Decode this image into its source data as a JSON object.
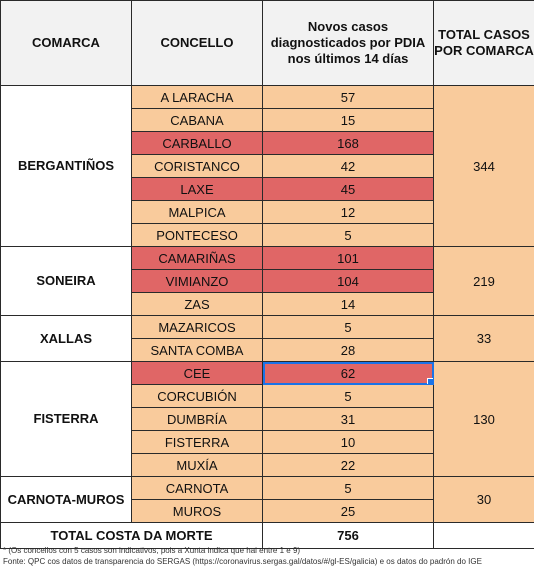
{
  "headers": [
    "COMARCA",
    "CONCELLO",
    "Novos casos diagnosticados por PDIA nos últimos 14 días",
    "TOTAL CASOS POR COMARCA"
  ],
  "groups": [
    {
      "comarca": "BERGANTIÑOS",
      "total": "344",
      "rows": [
        {
          "concello": "A LARACHA",
          "cases": "57",
          "highlight": false
        },
        {
          "concello": "CABANA",
          "cases": "15",
          "highlight": false
        },
        {
          "concello": "CARBALLO",
          "cases": "168",
          "highlight": true
        },
        {
          "concello": "CORISTANCO",
          "cases": "42",
          "highlight": false
        },
        {
          "concello": "LAXE",
          "cases": "45",
          "highlight": true
        },
        {
          "concello": "MALPICA",
          "cases": "12",
          "highlight": false
        },
        {
          "concello": "PONTECESO",
          "cases": "5",
          "highlight": false
        }
      ]
    },
    {
      "comarca": "SONEIRA",
      "total": "219",
      "rows": [
        {
          "concello": "CAMARIÑAS",
          "cases": "101",
          "highlight": true
        },
        {
          "concello": "VIMIANZO",
          "cases": "104",
          "highlight": true
        },
        {
          "concello": "ZAS",
          "cases": "14",
          "highlight": false
        }
      ]
    },
    {
      "comarca": "XALLAS",
      "total": "33",
      "rows": [
        {
          "concello": "MAZARICOS",
          "cases": "5",
          "highlight": false
        },
        {
          "concello": "SANTA COMBA",
          "cases": "28",
          "highlight": false
        }
      ]
    },
    {
      "comarca": "FISTERRA",
      "total": "130",
      "rows": [
        {
          "concello": "CEE",
          "cases": "62",
          "highlight": true,
          "selected": true
        },
        {
          "concello": "CORCUBIÓN",
          "cases": "5",
          "highlight": false
        },
        {
          "concello": "DUMBRÍA",
          "cases": "31",
          "highlight": false
        },
        {
          "concello": "FISTERRA",
          "cases": "10",
          "highlight": false
        },
        {
          "concello": "MUXÍA",
          "cases": "22",
          "highlight": false
        }
      ]
    },
    {
      "comarca": "CARNOTA-MUROS",
      "total": "30",
      "rows": [
        {
          "concello": "CARNOTA",
          "cases": "5",
          "highlight": false
        },
        {
          "concello": "MUROS",
          "cases": "25",
          "highlight": false
        }
      ]
    }
  ],
  "grand_total": {
    "label": "TOTAL COSTA DA MORTE",
    "value": "756"
  },
  "notes": [
    "* (Os concellos con 5 casos son indicativos, pois a Xunta indica que hai entre 1 e 9)",
    "Fonte: QPC cos datos de transparencia do SERGAS (https://coronavirus.sergas.gal/datos/#/gl-ES/galicia) e os datos do padrón do IGE"
  ],
  "colors": {
    "cell_fill": "#f9cb9c",
    "highlight_fill": "#e06666",
    "header_fill": "#f2f2f2",
    "selection": "#1a73e8"
  }
}
